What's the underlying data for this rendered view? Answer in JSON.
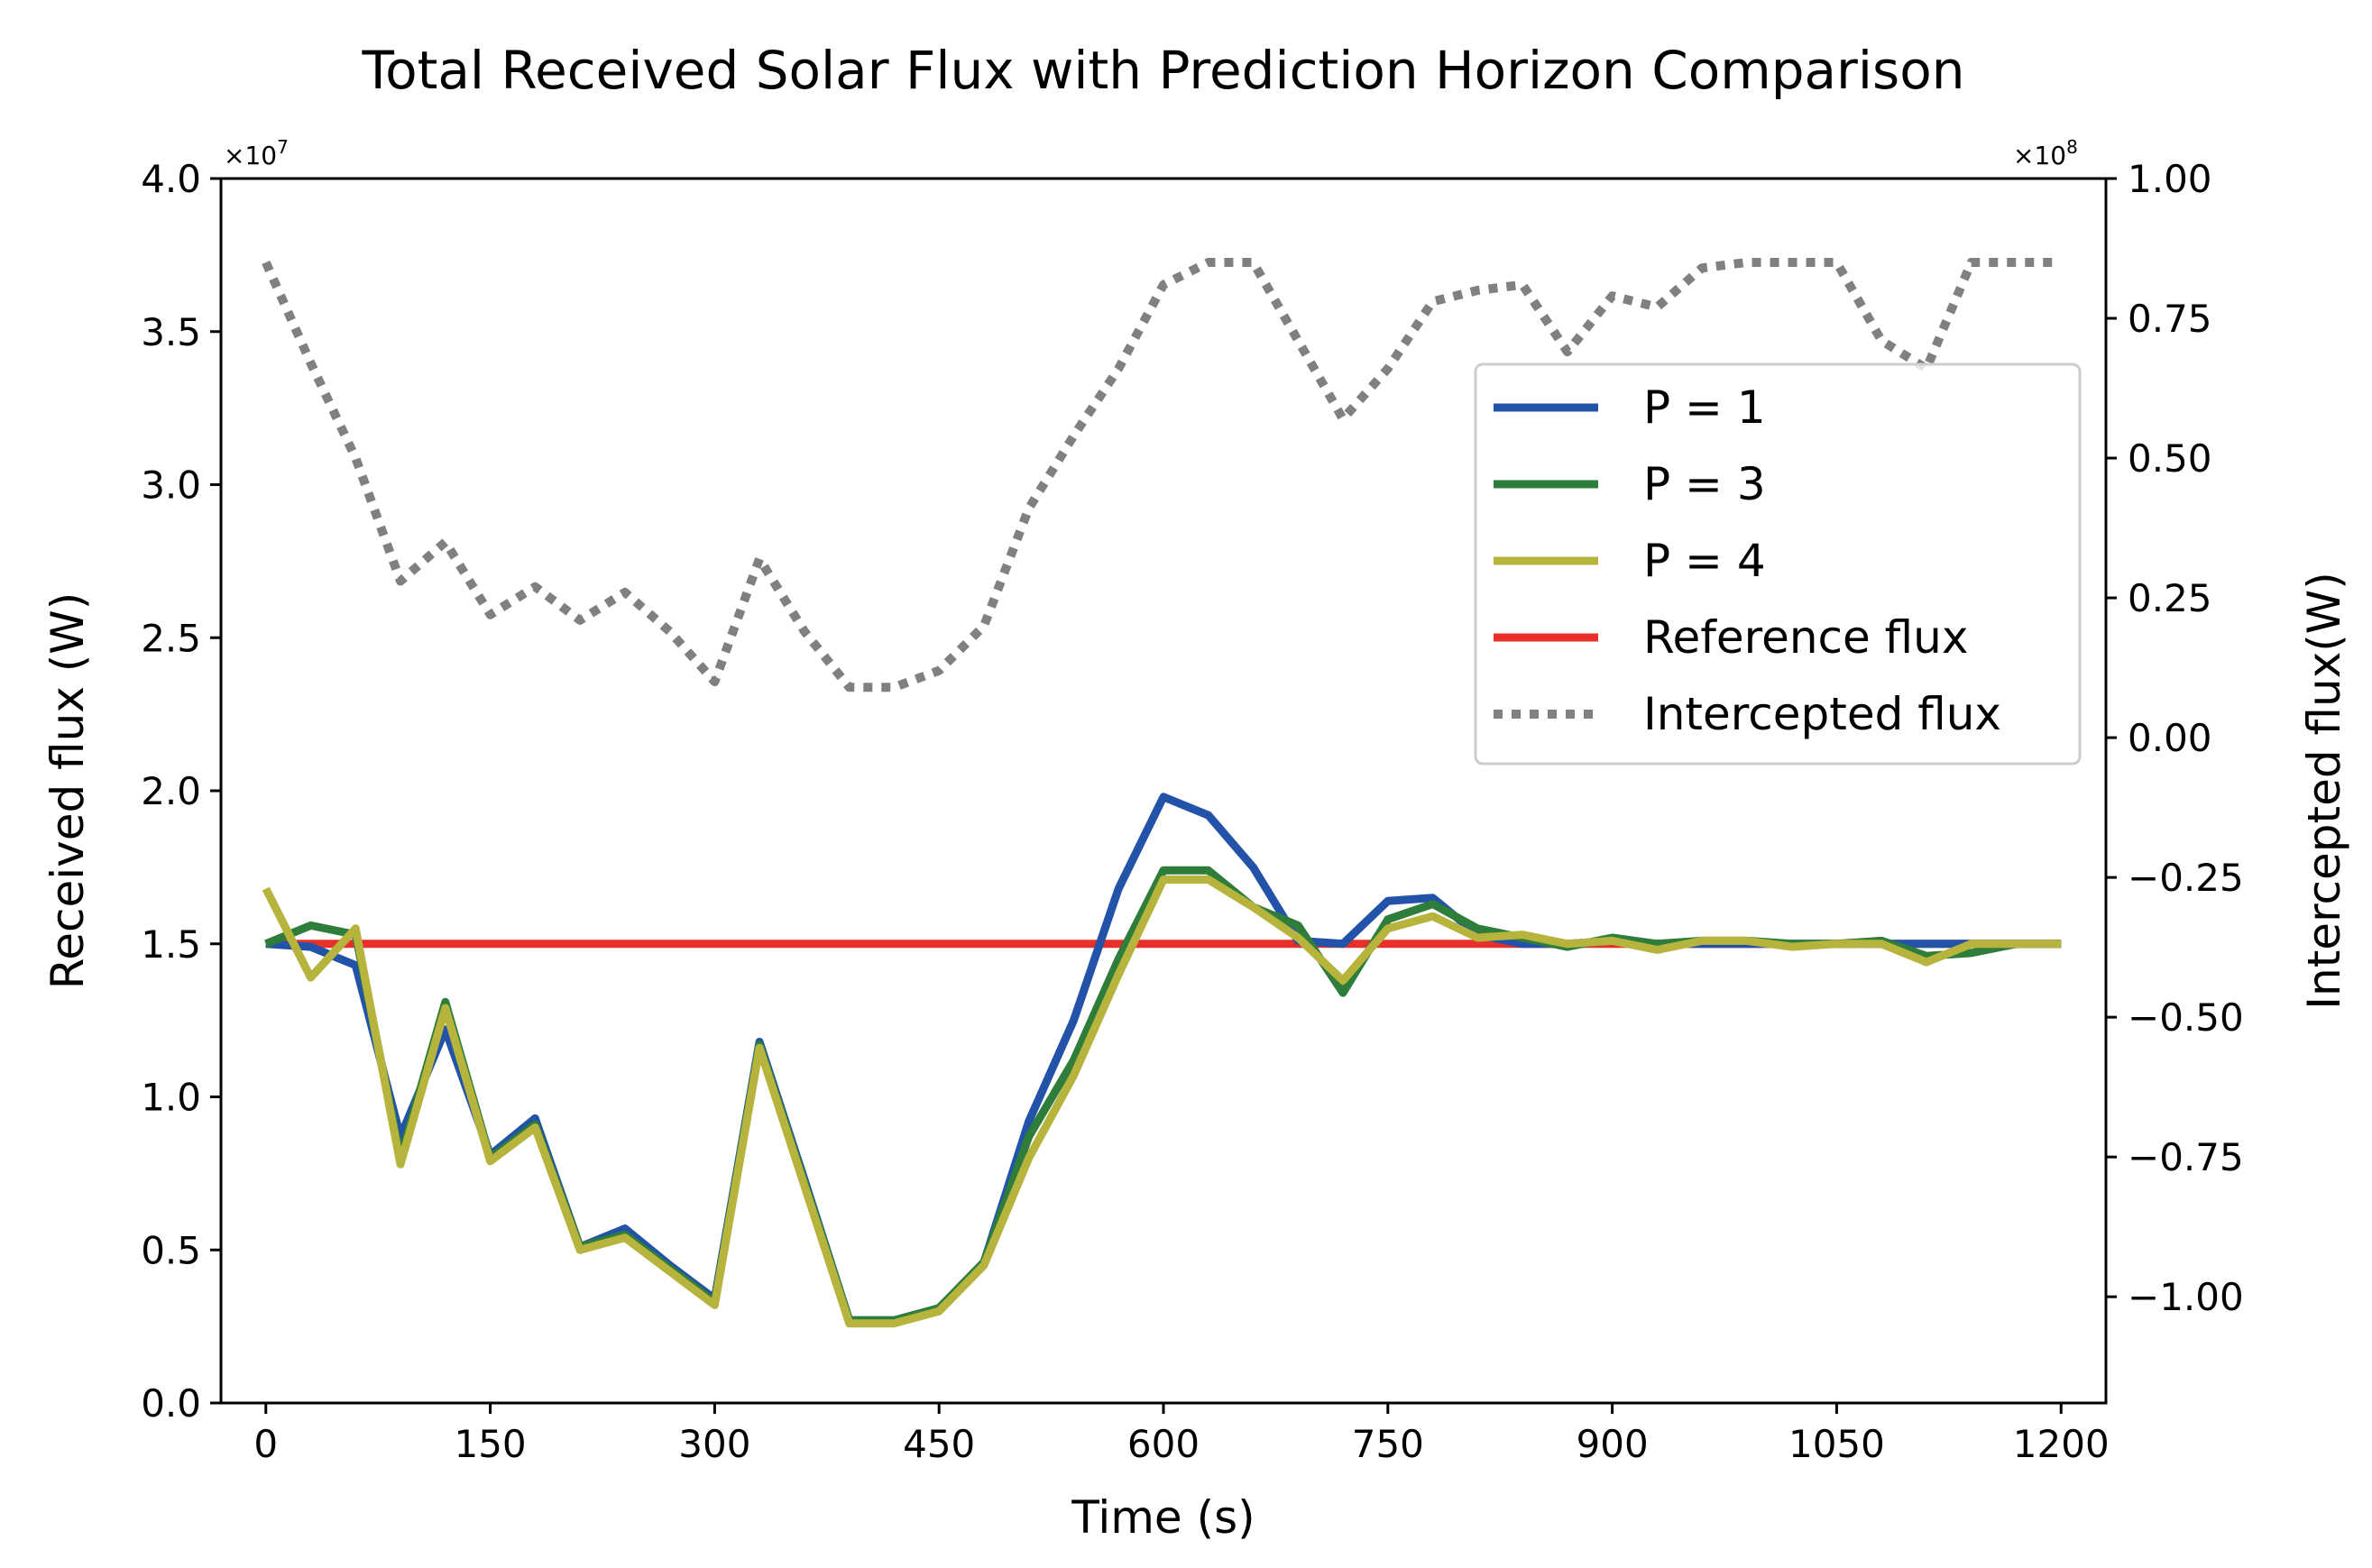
{
  "chart_data": {
    "type": "line",
    "title": "Total Received Solar Flux with Prediction Horizon Comparison",
    "xlabel": "Time (s)",
    "ylabel": "Received flux (W)",
    "y2label": "Intercepted flux(W)",
    "xlim": [
      -30,
      1230
    ],
    "ylim": [
      0,
      4.0
    ],
    "y2lim": [
      -1.19,
      1.0
    ],
    "y_scale_label": "×10",
    "y_scale_exp": "7",
    "y2_scale_label": "×10",
    "y2_scale_exp": "8",
    "x_ticks": [
      0,
      150,
      300,
      450,
      600,
      750,
      900,
      1050,
      1200
    ],
    "x_tick_labels": [
      "0",
      "150",
      "300",
      "450",
      "600",
      "750",
      "900",
      "1050",
      "1200"
    ],
    "y_ticks": [
      0,
      0.5,
      1.0,
      1.5,
      2.0,
      2.5,
      3.0,
      3.5,
      4.0
    ],
    "y_tick_labels": [
      "0.0",
      "0.5",
      "1.0",
      "1.5",
      "2.0",
      "2.5",
      "3.0",
      "3.5",
      "4.0"
    ],
    "y2_ticks": [
      -1.0,
      -0.75,
      -0.5,
      -0.25,
      0.0,
      0.25,
      0.5,
      0.75,
      1.0
    ],
    "y2_tick_labels": [
      "−1.00",
      "−0.75",
      "−0.50",
      "−0.25",
      "0.00",
      "0.25",
      "0.50",
      "0.75",
      "1.00"
    ],
    "legend_position": "upper-right",
    "series": [
      {
        "name": "P = 1",
        "axis": "left",
        "color": "#2253a8",
        "style": "solid",
        "x": [
          0,
          30,
          60,
          90,
          120,
          150,
          180,
          210,
          240,
          270,
          300,
          330,
          360,
          390,
          420,
          450,
          480,
          510,
          540,
          570,
          600,
          630,
          660,
          690,
          720,
          750,
          780,
          810,
          840,
          870,
          900,
          930,
          960,
          990,
          1020,
          1050,
          1080,
          1110,
          1140,
          1170,
          1200
        ],
        "values": [
          1.5,
          1.49,
          1.43,
          0.87,
          1.22,
          0.81,
          0.93,
          0.51,
          0.57,
          0.45,
          0.34,
          1.18,
          0.73,
          0.27,
          0.27,
          0.31,
          0.46,
          0.92,
          1.25,
          1.68,
          1.98,
          1.92,
          1.75,
          1.51,
          1.5,
          1.64,
          1.65,
          1.53,
          1.5,
          1.5,
          1.51,
          1.5,
          1.5,
          1.5,
          1.5,
          1.5,
          1.5,
          1.5,
          1.5,
          1.5,
          1.5
        ]
      },
      {
        "name": "P = 3",
        "axis": "left",
        "color": "#2e7d3a",
        "style": "solid",
        "x": [
          0,
          30,
          60,
          90,
          120,
          150,
          180,
          210,
          240,
          270,
          300,
          330,
          360,
          390,
          420,
          450,
          480,
          510,
          540,
          570,
          600,
          630,
          660,
          690,
          720,
          750,
          780,
          810,
          840,
          870,
          900,
          930,
          960,
          990,
          1020,
          1050,
          1080,
          1110,
          1140,
          1170,
          1200
        ],
        "values": [
          1.5,
          1.56,
          1.53,
          0.8,
          1.31,
          0.8,
          0.91,
          0.51,
          0.55,
          0.44,
          0.33,
          1.17,
          0.72,
          0.27,
          0.27,
          0.31,
          0.46,
          0.87,
          1.12,
          1.45,
          1.74,
          1.74,
          1.62,
          1.56,
          1.34,
          1.58,
          1.63,
          1.55,
          1.52,
          1.49,
          1.52,
          1.5,
          1.51,
          1.51,
          1.5,
          1.5,
          1.51,
          1.46,
          1.47,
          1.5,
          1.5
        ]
      },
      {
        "name": "P = 4",
        "axis": "left",
        "color": "#b6b43c",
        "style": "solid",
        "x": [
          0,
          30,
          60,
          90,
          120,
          150,
          180,
          210,
          240,
          270,
          300,
          330,
          360,
          390,
          420,
          450,
          480,
          510,
          540,
          570,
          600,
          630,
          660,
          690,
          720,
          750,
          780,
          810,
          840,
          870,
          900,
          930,
          960,
          990,
          1020,
          1050,
          1080,
          1110,
          1140,
          1170,
          1200
        ],
        "values": [
          1.68,
          1.39,
          1.55,
          0.78,
          1.29,
          0.79,
          0.9,
          0.5,
          0.54,
          0.43,
          0.32,
          1.16,
          0.71,
          0.26,
          0.26,
          0.3,
          0.45,
          0.8,
          1.07,
          1.4,
          1.71,
          1.71,
          1.62,
          1.52,
          1.38,
          1.55,
          1.59,
          1.52,
          1.53,
          1.5,
          1.51,
          1.48,
          1.51,
          1.51,
          1.49,
          1.5,
          1.5,
          1.44,
          1.5,
          1.5,
          1.5
        ]
      },
      {
        "name": "Reference flux",
        "axis": "left",
        "color": "#e8302a",
        "style": "solid",
        "x": [
          0,
          1200
        ],
        "values": [
          1.5,
          1.5
        ]
      },
      {
        "name": "Intercepted flux",
        "axis": "right",
        "color": "#808080",
        "style": "dotted",
        "x": [
          0,
          30,
          60,
          90,
          120,
          150,
          180,
          210,
          240,
          270,
          300,
          330,
          360,
          390,
          420,
          450,
          480,
          510,
          540,
          570,
          600,
          630,
          660,
          690,
          720,
          750,
          780,
          810,
          840,
          870,
          900,
          930,
          960,
          990,
          1020,
          1050,
          1080,
          1110,
          1140,
          1170,
          1200
        ],
        "values": [
          0.85,
          0.67,
          0.5,
          0.28,
          0.35,
          0.22,
          0.27,
          0.21,
          0.26,
          0.19,
          0.1,
          0.32,
          0.19,
          0.09,
          0.09,
          0.12,
          0.2,
          0.41,
          0.54,
          0.66,
          0.81,
          0.85,
          0.85,
          0.71,
          0.57,
          0.66,
          0.78,
          0.8,
          0.81,
          0.69,
          0.79,
          0.77,
          0.84,
          0.85,
          0.85,
          0.85,
          0.71,
          0.66,
          0.85,
          0.85,
          0.85
        ]
      }
    ]
  }
}
